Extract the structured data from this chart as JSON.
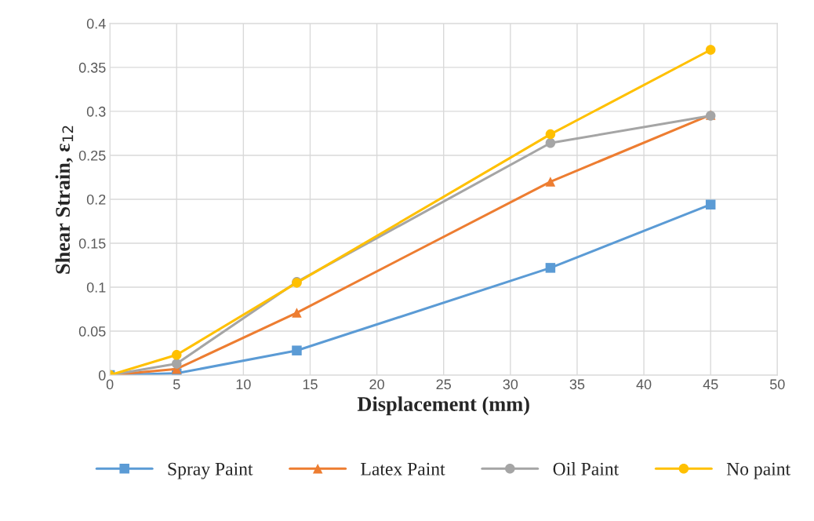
{
  "chart_data": {
    "type": "line",
    "xlabel": "Displacement (mm)",
    "ylabel": "Shear Strain, ε$_{12}$",
    "x": [
      0,
      5,
      14,
      33,
      45
    ],
    "series": [
      {
        "name": "Spray Paint",
        "color": "#5b9bd5",
        "marker": "square",
        "values": [
          0,
          0.002,
          0.028,
          0.122,
          0.194
        ]
      },
      {
        "name": "Latex Paint",
        "color": "#ed7d31",
        "marker": "triangle",
        "values": [
          0,
          0.007,
          0.071,
          0.22,
          0.296
        ]
      },
      {
        "name": "Oil Paint",
        "color": "#a5a5a5",
        "marker": "circle",
        "values": [
          0,
          0.013,
          0.106,
          0.264,
          0.295
        ]
      },
      {
        "name": "No paint",
        "color": "#ffc000",
        "marker": "circle",
        "values": [
          0,
          0.023,
          0.105,
          0.274,
          0.37
        ]
      }
    ],
    "xlim": [
      0,
      50
    ],
    "xticks": [
      0,
      5,
      10,
      15,
      20,
      25,
      30,
      35,
      40,
      45,
      50
    ],
    "ylim": [
      0,
      0.4
    ],
    "yticks": [
      0,
      0.05,
      0.1,
      0.15,
      0.2,
      0.25,
      0.3,
      0.35,
      0.4
    ],
    "grid": true,
    "legend": "bottom",
    "line_style": "solid"
  }
}
